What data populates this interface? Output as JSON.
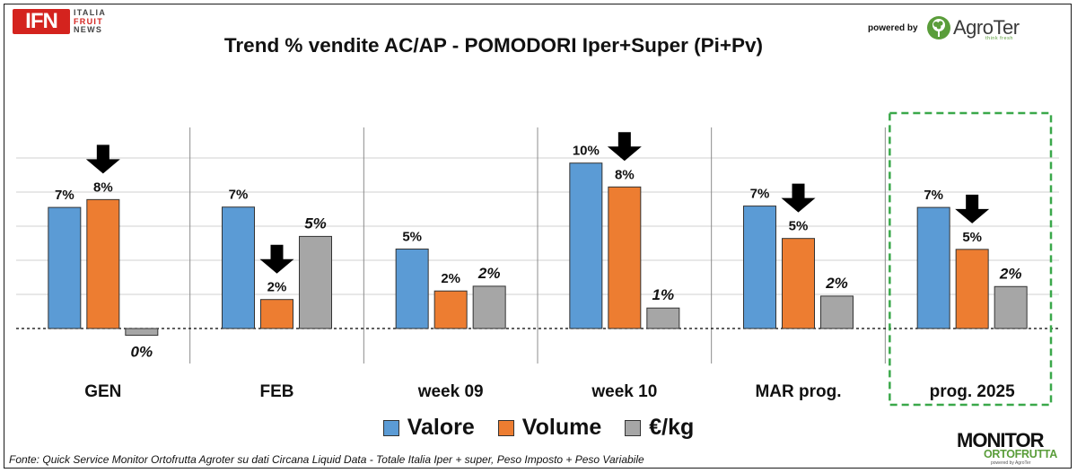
{
  "header": {
    "logo_text": "IFN",
    "logo_words": [
      "ITALIA",
      "FRUIT",
      "NEWS"
    ],
    "powered_by": "powered by",
    "brand_name": "AgroTer",
    "brand_tagline": "think fresh"
  },
  "footer": {
    "source": "Fonte: Quick Service Monitor Ortofrutta Agroter su dati Circana Liquid Data - Totale Italia Iper + super, Peso Imposto + Peso Variabile",
    "monitor_top": "MONITOR",
    "monitor_bottom": "ORTOFRUTTA",
    "monitor_small": "powered by AgroTer"
  },
  "chart_data": {
    "type": "bar",
    "title": "Trend % vendite AC/AP - POMODORI  Iper+Super (Pi+Pv)",
    "xlabel": "",
    "ylabel": "",
    "ylim": [
      -0.9,
      5.9
    ],
    "grid": true,
    "legend_position": "bottom",
    "highlight_category": "prog. 2025",
    "categories": [
      "GEN",
      "FEB",
      "week 09",
      "week 10",
      "MAR prog.",
      "prog. 2025"
    ],
    "series": [
      {
        "name": "Valore",
        "color": "#5b9bd5",
        "values": [
          3.55,
          3.56,
          2.33,
          4.85,
          3.59,
          3.55
        ],
        "labels": [
          "7%",
          "7%",
          "5%",
          "10%",
          "7%",
          "7%"
        ],
        "label_style": "bold"
      },
      {
        "name": "Volume",
        "color": "#ed7d31",
        "values": [
          3.78,
          0.85,
          1.1,
          4.15,
          2.64,
          2.32
        ],
        "labels": [
          "8%",
          "2%",
          "2%",
          "8%",
          "5%",
          "5%"
        ],
        "label_style": "bold"
      },
      {
        "name": "€/kg",
        "color": "#a6a6a6",
        "values": [
          -0.2,
          2.7,
          1.24,
          0.6,
          0.95,
          1.23
        ],
        "labels": [
          "0%",
          "5%",
          "2%",
          "1%",
          "2%",
          "2%"
        ],
        "label_style": "bold-italic"
      }
    ],
    "trend_arrows": [
      "Volume",
      "Volume",
      "",
      "Volume",
      "Volume",
      "Volume"
    ]
  }
}
